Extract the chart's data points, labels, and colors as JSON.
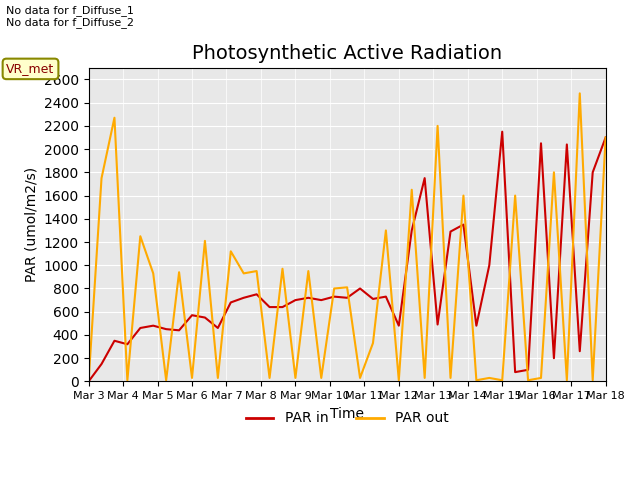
{
  "title": "Photosynthetic Active Radiation",
  "xlabel": "Time",
  "ylabel": "PAR (umol/m2/s)",
  "annotation_text": "No data for f_Diffuse_1\nNo data for f_Diffuse_2",
  "box_label": "VR_met",
  "x_labels": [
    "Mar 3",
    "Mar 4",
    "Mar 5",
    "Mar 6",
    "Mar 7",
    "Mar 8",
    "Mar 9",
    "Mar 10",
    "Mar 11",
    "Mar 12",
    "Mar 13",
    "Mar 14",
    "Mar 15",
    "Mar 16",
    "Mar 17",
    "Mar 18"
  ],
  "par_in": [
    0,
    150,
    350,
    320,
    460,
    480,
    450,
    440,
    570,
    550,
    460,
    680,
    720,
    750,
    640,
    640,
    700,
    720,
    700,
    730,
    720,
    800,
    710,
    730,
    480,
    1300,
    1750,
    490,
    1290,
    1350,
    480,
    1000,
    2150,
    80,
    100,
    2050,
    200,
    2040,
    260,
    1800,
    2100
  ],
  "par_out": [
    0,
    1750,
    2270,
    10,
    1250,
    930,
    10,
    940,
    30,
    1210,
    30,
    1120,
    930,
    950,
    30,
    970,
    30,
    950,
    30,
    800,
    810,
    30,
    330,
    1300,
    10,
    1650,
    30,
    2200,
    30,
    1600,
    10,
    30,
    10,
    1600,
    10,
    30,
    1800,
    10,
    2480,
    10,
    2100
  ],
  "ylim": [
    0,
    2700
  ],
  "yticks": [
    0,
    200,
    400,
    600,
    800,
    1000,
    1200,
    1400,
    1600,
    1800,
    2000,
    2200,
    2400,
    2600
  ],
  "color_par_in": "#cc0000",
  "color_par_out": "#ffaa00",
  "bg_color": "#e8e8e8",
  "title_fontsize": 14,
  "legend_entries": [
    "PAR in",
    "PAR out"
  ]
}
